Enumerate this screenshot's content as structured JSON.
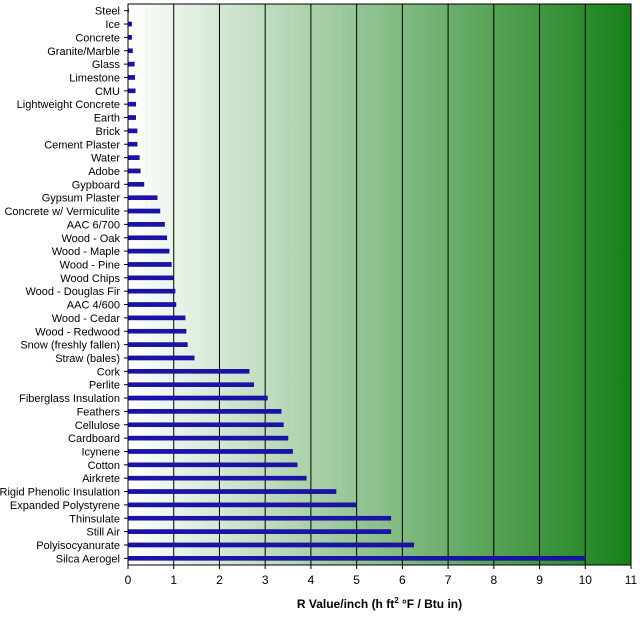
{
  "chart_data": {
    "type": "bar",
    "orientation": "horizontal",
    "title": "",
    "xlabel": "R Value/inch (h ft² °F / Btu in)",
    "xlabel_parts": {
      "prefix": "R Value/inch (h ft",
      "sup": "2",
      "suffix": " °F / Btu in)"
    },
    "ylabel": "",
    "xlim": [
      0,
      11
    ],
    "xticks": [
      "0",
      "1",
      "2",
      "3",
      "4",
      "5",
      "6",
      "7",
      "8",
      "9",
      "10",
      "11"
    ],
    "grid": true,
    "categories": [
      "Steel",
      "Ice",
      "Concrete",
      "Granite/Marble",
      "Glass",
      "Limestone",
      "CMU",
      "Lightweight Concrete",
      "Earth",
      "Brick",
      "Cement Plaster",
      "Water",
      "Adobe",
      "Gypboard",
      "Gypsum Plaster",
      "Concrete w/ Vermiculite",
      "AAC 6/700",
      "Wood - Oak",
      "Wood - Maple",
      "Wood - Pine",
      "Wood Chips",
      "Wood - Douglas Fir",
      "AAC 4/600",
      "Wood - Cedar",
      "Wood - Redwood",
      "Snow (freshly fallen)",
      "Straw (bales)",
      "Cork",
      "Perlite",
      "Fiberglass Insulation",
      "Feathers",
      "Cellulose",
      "Cardboard",
      "Icynene",
      "Cotton",
      "Airkrete",
      "Rigid Phenolic Insulation",
      "Expanded Polystyrene",
      "Thinsulate",
      "Still Air",
      "Polyisocyanurate",
      "Silca Aerogel"
    ],
    "values": [
      0.003,
      0.08,
      0.08,
      0.1,
      0.14,
      0.15,
      0.16,
      0.17,
      0.17,
      0.2,
      0.2,
      0.25,
      0.27,
      0.35,
      0.64,
      0.7,
      0.8,
      0.85,
      0.9,
      0.95,
      1.0,
      1.03,
      1.05,
      1.25,
      1.27,
      1.3,
      1.45,
      2.65,
      2.75,
      3.05,
      3.35,
      3.4,
      3.5,
      3.6,
      3.7,
      3.9,
      4.55,
      5.0,
      5.75,
      5.75,
      6.25,
      10.0
    ],
    "colors": {
      "bar_fill": "#1a12b0",
      "bar_edge": "#0a0560",
      "gradient_start": "#ffffff",
      "gradient_end": "#178018",
      "gridline": "#000000"
    }
  }
}
